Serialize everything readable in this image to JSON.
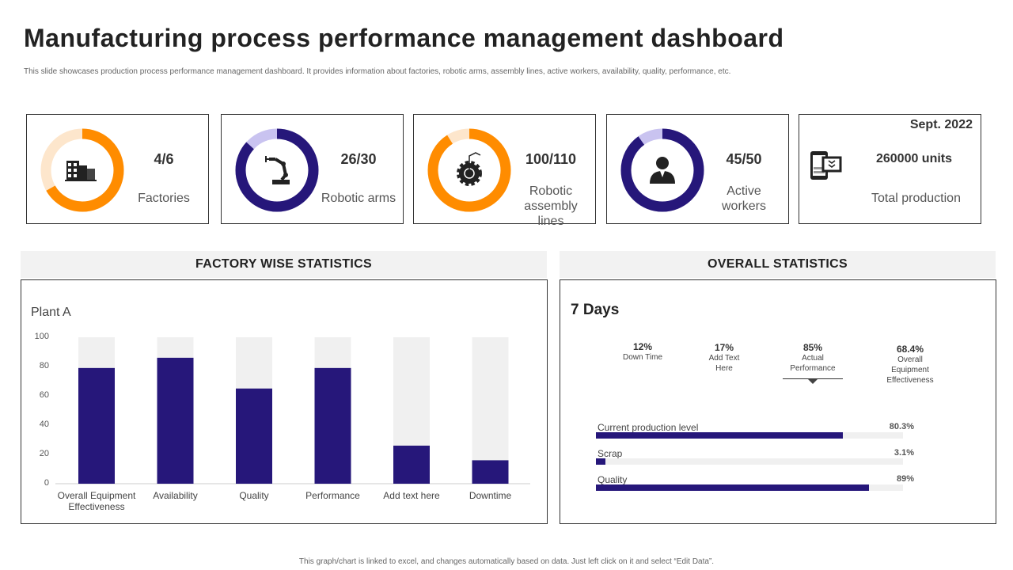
{
  "title": "Manufacturing process performance management dashboard",
  "subtitle": "This slide showcases production process performance management dashboard. It provides information about factories, robotic arms, assembly lines, active workers, availability, quality, performance, etc.",
  "colors": {
    "orange": "#ff8c00",
    "orange_light": "#fde6cc",
    "navy": "#26177a",
    "navy_light": "#c9c3f0",
    "track": "#f0f0f0"
  },
  "kpis": [
    {
      "value": "4/6",
      "numerator": 4,
      "denominator": 6,
      "label": "Factories",
      "icon": "factory-building-icon",
      "color": "orange"
    },
    {
      "value": "26/30",
      "numerator": 26,
      "denominator": 30,
      "label": "Robotic arms",
      "icon": "robotic-arm-icon",
      "color": "navy"
    },
    {
      "value": "100/110",
      "numerator": 100,
      "denominator": 110,
      "label": "Robotic assembly lines",
      "icon": "gear-robot-icon",
      "color": "orange"
    },
    {
      "value": "45/50",
      "numerator": 45,
      "denominator": 50,
      "label": "Active workers",
      "icon": "worker-icon",
      "color": "navy"
    }
  ],
  "production": {
    "period": "Sept. 2022",
    "value": "260000 units",
    "label": "Total production",
    "icon": "tablet-download-icon"
  },
  "factory_section": {
    "title": "FACTORY WISE STATISTICS"
  },
  "overall_section": {
    "title": "OVERALL STATISTICS",
    "period": "7 Days",
    "stats": [
      {
        "value": "12%",
        "label": "Down Time"
      },
      {
        "value": "17%",
        "label": "Add Text Here"
      },
      {
        "value": "85%",
        "label": "Actual Performance"
      },
      {
        "value": "68.4%",
        "label": "Overall Equipment Effectiveness"
      }
    ],
    "bars": [
      {
        "label": "Current  production  level",
        "value": "80.3%",
        "pct": 80.3
      },
      {
        "label": "Scrap",
        "value": "3.1%",
        "pct": 3.1
      },
      {
        "label": "Quality",
        "value": "89%",
        "pct": 89
      }
    ]
  },
  "chart_data": {
    "type": "bar",
    "title": "Plant A",
    "categories": [
      "Overall Equipment Effectiveness",
      "Availability",
      "Quality",
      "Performance",
      "Add text here",
      "Downtime"
    ],
    "values": [
      79,
      86,
      65,
      79,
      26,
      16
    ],
    "ylim": [
      0,
      100
    ],
    "yticks": [
      "0",
      "20",
      "40",
      "60",
      "80",
      "100"
    ],
    "background_max": 100,
    "grid": false
  },
  "footer": "This graph/chart is linked to excel, and changes automatically based on data. Just left click on it and select “Edit Data”."
}
